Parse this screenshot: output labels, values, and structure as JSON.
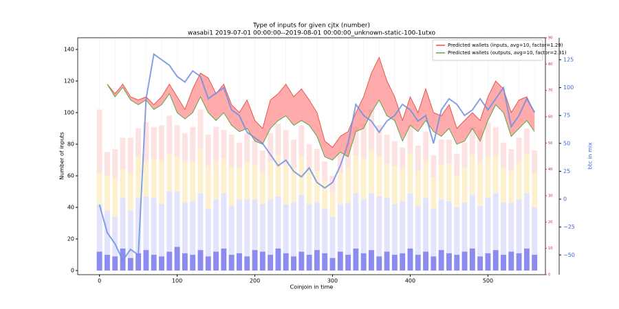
{
  "chart_data": {
    "type": "line",
    "title": "Type of inputs for given cjtx (number)",
    "subtitle": "wasabi1 2019-07-01 00:00:00--2019-08-01 00:00:00_unknown-static-100-1utxo",
    "xlabel": "Coinjoin in time",
    "ylabel": "Number of inputs",
    "y2label": "btc in mix",
    "legend": "upper right",
    "fill_color": "#ff6666",
    "x": [
      0,
      10,
      20,
      30,
      40,
      50,
      60,
      70,
      80,
      90,
      100,
      110,
      120,
      130,
      140,
      150,
      160,
      170,
      180,
      190,
      200,
      210,
      220,
      230,
      240,
      250,
      260,
      270,
      280,
      290,
      300,
      310,
      320,
      330,
      340,
      350,
      360,
      370,
      380,
      390,
      400,
      410,
      420,
      430,
      440,
      450,
      460,
      470,
      480,
      490,
      500,
      510,
      520,
      530,
      540,
      550,
      560
    ],
    "xlim": [
      -28,
      574
    ],
    "xticks": [
      0,
      100,
      200,
      300,
      400,
      500
    ],
    "ylim": [
      -2.6,
      147.4
    ],
    "yticks": [
      0,
      20,
      40,
      60,
      80,
      100,
      120,
      140
    ],
    "y2lim": [
      -67.7,
      144.7
    ],
    "y2ticks": [
      {
        "value": -50,
        "label": "−50"
      },
      {
        "value": -25,
        "label": "−25"
      },
      0,
      25,
      50,
      75,
      100,
      125
    ],
    "y3lim": [
      0,
      90
    ],
    "y3ticks": [
      0,
      10,
      20,
      30,
      40,
      50,
      60,
      70,
      80,
      90
    ],
    "bars": [
      {
        "color": "#8c8cf0",
        "values": [
          12,
          10,
          9,
          14,
          8,
          11,
          13,
          10,
          9,
          12,
          15,
          11,
          10,
          13,
          9,
          12,
          14,
          10,
          11,
          9,
          13,
          12,
          10,
          14,
          11,
          9,
          12,
          10,
          13,
          11,
          8,
          12,
          10,
          14,
          11,
          13,
          9,
          12,
          10,
          11,
          14,
          10,
          12,
          9,
          13,
          11,
          10,
          12,
          14,
          9,
          11,
          13,
          10,
          12,
          11,
          14,
          10
        ]
      },
      {
        "color": "#e3e3fb",
        "values": [
          30,
          28,
          25,
          32,
          30,
          35,
          34,
          36,
          33,
          38,
          35,
          32,
          34,
          36,
          30,
          33,
          35,
          31,
          34,
          36,
          32,
          30,
          35,
          33,
          31,
          34,
          36,
          32,
          30,
          28,
          26,
          30,
          33,
          35,
          34,
          36,
          38,
          34,
          32,
          33,
          35,
          31,
          34,
          30,
          32,
          33,
          30,
          31,
          34,
          32,
          35,
          36,
          33,
          31,
          34,
          35,
          30
        ]
      },
      {
        "color": "#fdf0cf",
        "values": [
          20,
          22,
          25,
          18,
          24,
          26,
          22,
          25,
          28,
          24,
          22,
          26,
          25,
          28,
          27,
          24,
          22,
          25,
          20,
          24,
          22,
          20,
          24,
          26,
          25,
          22,
          24,
          22,
          20,
          18,
          16,
          20,
          22,
          24,
          26,
          28,
          25,
          22,
          24,
          20,
          25,
          22,
          24,
          20,
          22,
          24,
          20,
          22,
          25,
          28,
          26,
          24,
          22,
          20,
          24,
          25,
          22
        ]
      },
      {
        "color": "#fde2e2",
        "values": [
          40,
          15,
          18,
          20,
          22,
          18,
          25,
          20,
          22,
          24,
          20,
          18,
          22,
          25,
          20,
          22,
          18,
          20,
          16,
          18,
          15,
          14,
          18,
          20,
          22,
          18,
          20,
          16,
          14,
          12,
          10,
          12,
          16,
          18,
          22,
          25,
          20,
          18,
          16,
          14,
          18,
          16,
          18,
          14,
          16,
          15,
          14,
          16,
          18,
          20,
          22,
          18,
          16,
          14,
          15,
          16,
          14
        ]
      }
    ],
    "series": [
      {
        "name": "Predicted wallets (inputs, avg=10, factor=1.29)",
        "color": "#e8554e",
        "values": [
          null,
          118,
          112,
          118,
          110,
          108,
          110,
          105,
          110,
          118,
          110,
          102,
          115,
          125,
          122,
          112,
          118,
          105,
          100,
          108,
          95,
          90,
          108,
          112,
          118,
          110,
          115,
          108,
          100,
          82,
          78,
          85,
          88,
          100,
          110,
          125,
          135,
          120,
          110,
          95,
          110,
          100,
          115,
          100,
          98,
          105,
          90,
          95,
          100,
          95,
          110,
          120,
          115,
          100,
          108,
          110,
          100
        ]
      },
      {
        "name": "Predicted wallets (outputs, avg=10, factor=2.31)",
        "color": "#5aa84a",
        "values": [
          null,
          118,
          110,
          116,
          108,
          105,
          108,
          102,
          105,
          112,
          100,
          96,
          100,
          110,
          100,
          95,
          100,
          92,
          88,
          90,
          82,
          80,
          90,
          95,
          98,
          92,
          95,
          92,
          85,
          72,
          70,
          75,
          72,
          88,
          90,
          100,
          108,
          98,
          95,
          82,
          92,
          88,
          95,
          88,
          85,
          90,
          80,
          82,
          90,
          82,
          95,
          105,
          100,
          85,
          90,
          95,
          88
        ]
      },
      {
        "color": "#6f8fe0",
        "axis": "y2",
        "values": [
          -5,
          -30,
          -40,
          -55,
          -45,
          -50,
          90,
          130,
          125,
          120,
          110,
          105,
          115,
          110,
          90,
          95,
          100,
          80,
          75,
          60,
          55,
          50,
          40,
          30,
          35,
          25,
          20,
          28,
          15,
          10,
          15,
          30,
          50,
          85,
          75,
          70,
          60,
          70,
          75,
          85,
          80,
          70,
          75,
          50,
          80,
          90,
          85,
          75,
          80,
          90,
          80,
          90,
          100,
          65,
          75,
          90,
          78
        ]
      }
    ]
  }
}
